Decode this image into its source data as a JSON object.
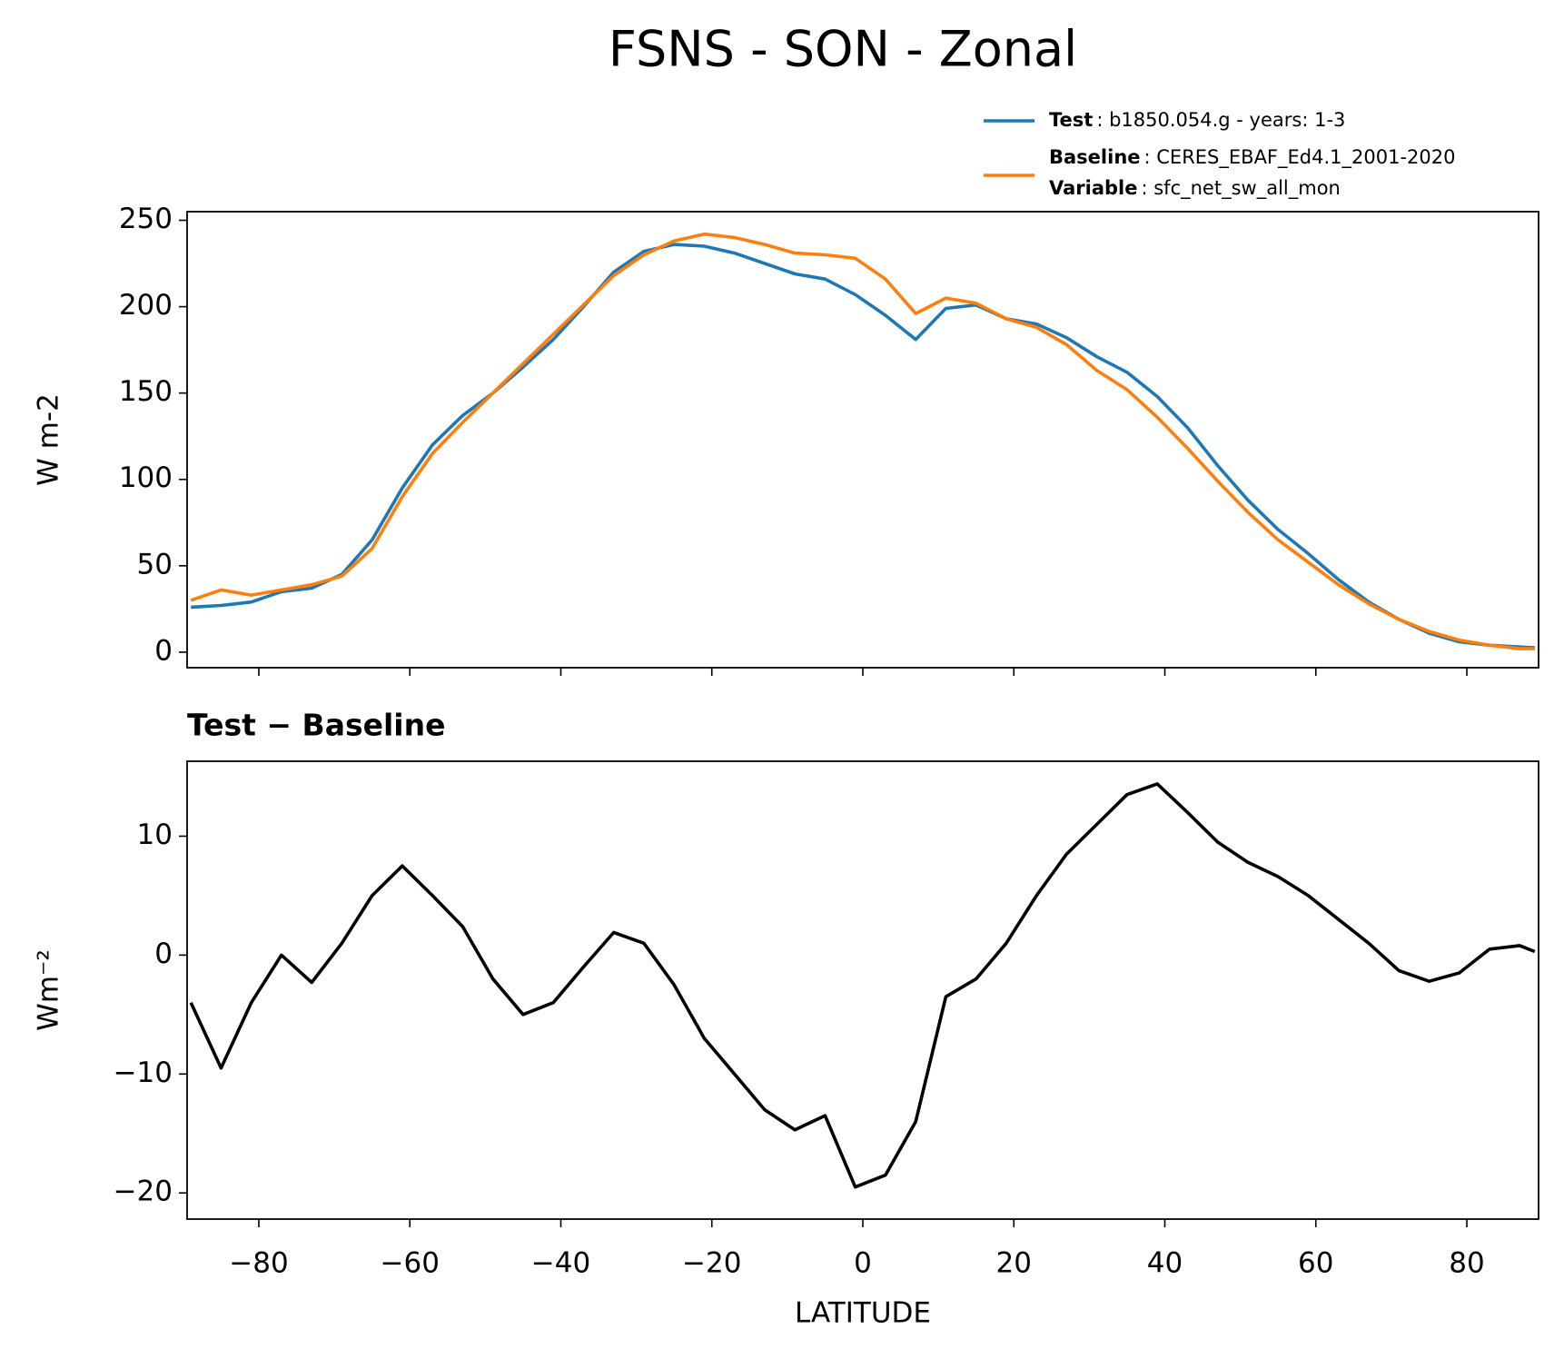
{
  "title": "FSNS - SON - Zonal",
  "chart_data": [
    {
      "type": "line",
      "ylabel": "W m-2",
      "x": [
        -89,
        -85,
        -81,
        -77,
        -73,
        -69,
        -65,
        -61,
        -57,
        -53,
        -49,
        -45,
        -41,
        -37,
        -33,
        -29,
        -25,
        -21,
        -17,
        -13,
        -9,
        -5,
        -1,
        3,
        7,
        11,
        15,
        19,
        23,
        27,
        31,
        35,
        39,
        43,
        47,
        51,
        55,
        59,
        63,
        67,
        71,
        75,
        79,
        83,
        87,
        89
      ],
      "series": [
        {
          "name": "Test",
          "description": ": b1850.054.g - years: 1-3",
          "color": "#1f77b4",
          "values": [
            26,
            27,
            29,
            35,
            37,
            45,
            65,
            95,
            120,
            137,
            150,
            165,
            181,
            200,
            220,
            232,
            236,
            235,
            231,
            225,
            219,
            216,
            207,
            195,
            181,
            199,
            201,
            193,
            190,
            182,
            171,
            162,
            148,
            130,
            108,
            88,
            71,
            57,
            42,
            29,
            19,
            11,
            6,
            4,
            3,
            2.5
          ]
        },
        {
          "name": "Baseline",
          "description": ": CERES_EBAF_Ed4.1_2001-2020",
          "color": "#ff7f0e",
          "values": [
            30,
            36,
            33,
            36,
            39,
            44,
            60,
            90,
            115,
            133,
            150,
            167,
            184,
            201,
            218,
            230,
            238,
            242,
            240,
            236,
            231,
            230,
            228,
            216,
            196,
            205,
            202,
            193,
            188,
            178,
            163,
            152,
            136,
            118,
            99,
            81,
            65,
            52,
            39,
            28,
            19,
            12,
            7,
            4,
            2,
            2
          ]
        }
      ],
      "legend_note": {
        "name": "Variable",
        "description": ": sfc_net_sw_all_mon"
      },
      "xlim": [
        -89.5,
        89.5
      ],
      "xticks": [
        -80,
        -60,
        -40,
        -20,
        0,
        20,
        40,
        60,
        80
      ],
      "ylim": [
        -9,
        255
      ],
      "yticks": [
        0,
        50,
        100,
        150,
        200,
        250
      ]
    },
    {
      "type": "line",
      "title": "Test − Baseline",
      "xlabel": "LATITUDE",
      "ylabel": "Wm⁻²",
      "x": [
        -89,
        -85,
        -81,
        -77,
        -73,
        -69,
        -65,
        -61,
        -57,
        -53,
        -49,
        -45,
        -41,
        -37,
        -33,
        -29,
        -25,
        -21,
        -17,
        -13,
        -9,
        -5,
        -1,
        3,
        7,
        11,
        15,
        19,
        23,
        27,
        31,
        35,
        39,
        43,
        47,
        51,
        55,
        59,
        63,
        67,
        71,
        75,
        79,
        83,
        87,
        89
      ],
      "series": [
        {
          "name": "Test − Baseline",
          "color": "#000000",
          "values": [
            -4,
            -9.5,
            -4,
            0,
            -2.3,
            1,
            5,
            7.5,
            5,
            2.4,
            -2,
            -5,
            -4,
            -1,
            1.9,
            1,
            -2.5,
            -7,
            -10,
            -13,
            -14.7,
            -13.5,
            -19.5,
            -18.5,
            -14,
            -3.5,
            -2,
            1,
            5,
            8.5,
            11,
            13.5,
            14.4,
            12,
            9.5,
            7.8,
            6.6,
            5,
            3,
            1,
            -1.3,
            -2.2,
            -1.5,
            0.5,
            0.8,
            0.3
          ]
        }
      ],
      "xlim": [
        -89.5,
        89.5
      ],
      "xticks": [
        {
          "value": -80,
          "label": "−80"
        },
        {
          "value": -60,
          "label": "−60"
        },
        {
          "value": -40,
          "label": "−40"
        },
        {
          "value": -20,
          "label": "−20"
        },
        0,
        20,
        40,
        60,
        80
      ],
      "ylim": [
        -22.2,
        16.3
      ],
      "yticks": [
        {
          "value": -20,
          "label": "−20"
        },
        {
          "value": -10,
          "label": "−10"
        },
        0,
        10
      ]
    }
  ]
}
